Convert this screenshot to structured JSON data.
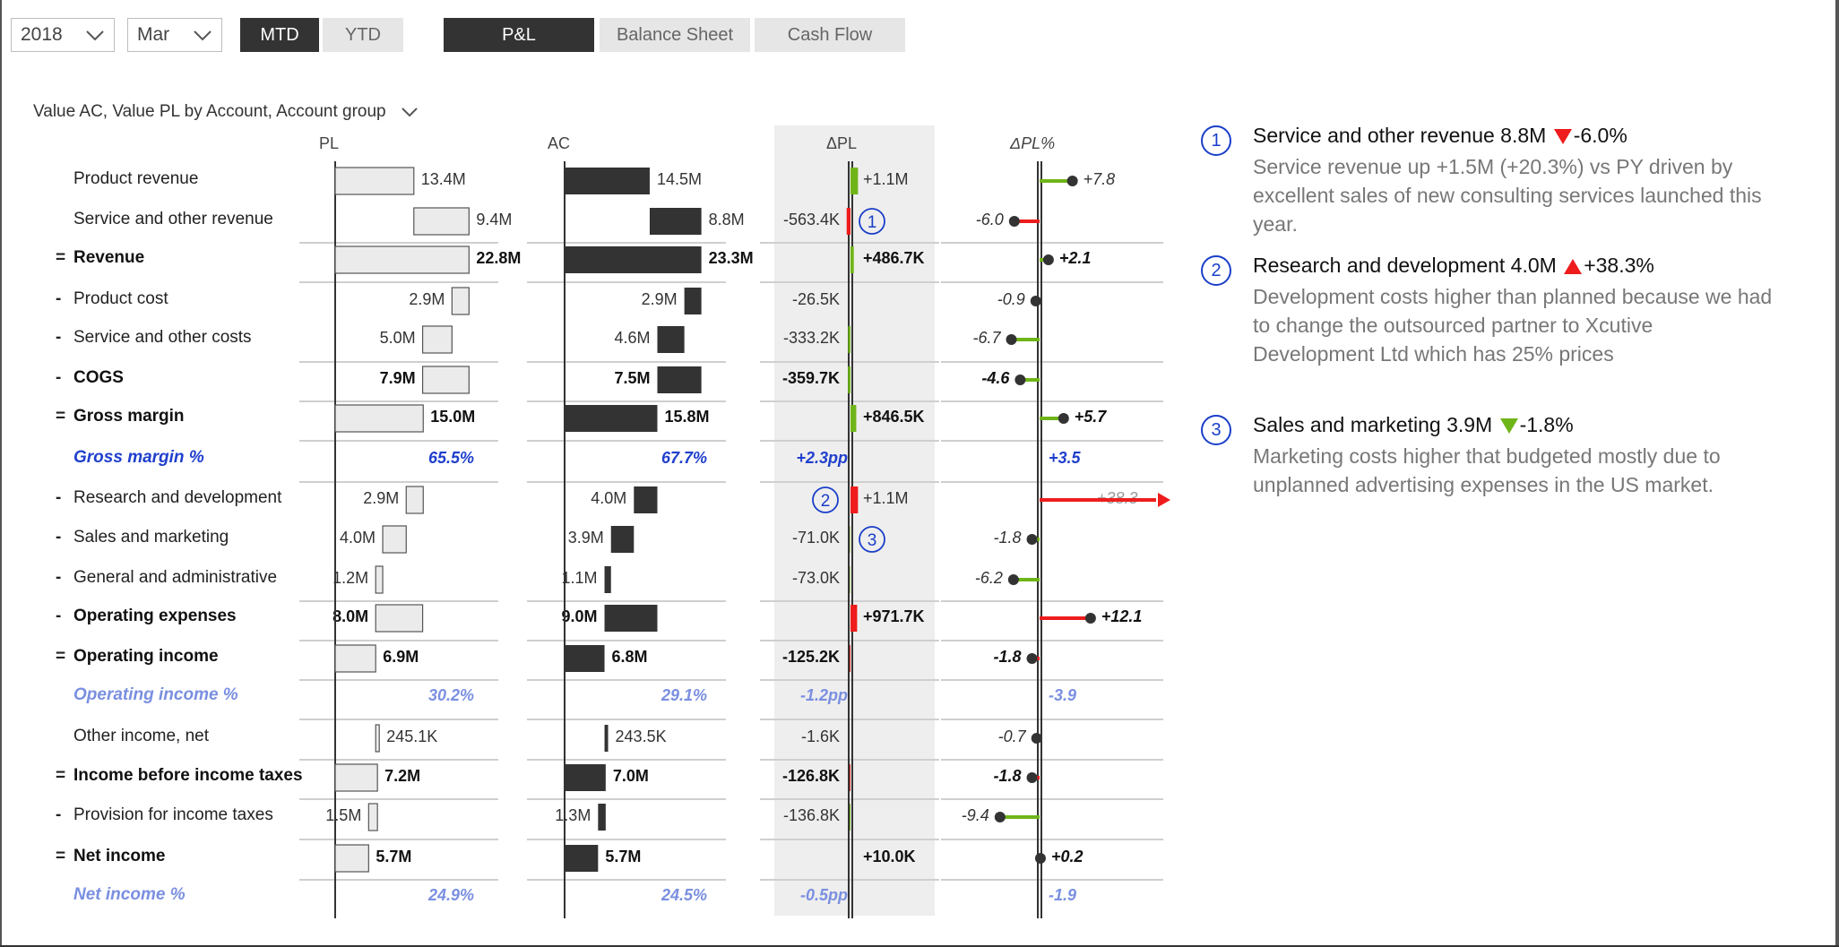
{
  "filters": {
    "year": "2018",
    "month": "Mar",
    "mtd": "MTD",
    "ytd": "YTD",
    "tabs": [
      "P&L",
      "Balance Sheet",
      "Cash Flow"
    ]
  },
  "visual_title": "Value AC, Value PL by Account, Account group",
  "columns": {
    "pl": "PL",
    "ac": "AC",
    "dpl": "ΔPL",
    "dplp": "ΔPL%"
  },
  "colors": {
    "dark": "#333333",
    "light_bar": "#ebebeb",
    "good": "#6fb519",
    "bad": "#ee1c1c",
    "accent": "#1a3ec9"
  },
  "rows": [
    {
      "op": "",
      "label": "Product revenue",
      "type": "normal",
      "pl": 13.4,
      "ac": 14.5,
      "pl_label": "13.4M",
      "ac_label": "14.5M",
      "dpl": 1.1,
      "dpl_label": "+1.1M",
      "dplp": 7.8,
      "dplp_label": "+7.8",
      "flow": "up"
    },
    {
      "op": "",
      "label": "Service and other revenue",
      "type": "normal",
      "pl": 9.4,
      "ac": 8.8,
      "pl_label": "9.4M",
      "ac_label": "8.8M",
      "dpl": -0.5634,
      "dpl_label": "-563.4K",
      "dplp": -6.0,
      "dplp_label": "-6.0",
      "flow": "up",
      "marker": "1"
    },
    {
      "op": "=",
      "label": "Revenue",
      "type": "total",
      "pl": 22.8,
      "ac": 23.3,
      "pl_label": "22.8M",
      "ac_label": "23.3M",
      "dpl": 0.4867,
      "dpl_label": "+486.7K",
      "dplp": 2.1,
      "dplp_label": "+2.1",
      "flow": "total"
    },
    {
      "op": "-",
      "label": "Product cost",
      "type": "normal",
      "pl": 2.9,
      "ac": 2.9,
      "pl_label": "2.9M",
      "ac_label": "2.9M",
      "dpl": -0.0265,
      "dpl_label": "-26.5K",
      "dplp": -0.9,
      "dplp_label": "-0.9",
      "flow": "cost"
    },
    {
      "op": "-",
      "label": "Service and other costs",
      "type": "normal",
      "pl": 5.0,
      "ac": 4.6,
      "pl_label": "5.0M",
      "ac_label": "4.6M",
      "dpl": -0.3332,
      "dpl_label": "-333.2K",
      "dplp": -6.7,
      "dplp_label": "-6.7",
      "flow": "cost"
    },
    {
      "op": "-",
      "label": "COGS",
      "type": "total",
      "pl": 7.9,
      "ac": 7.5,
      "pl_label": "7.9M",
      "ac_label": "7.5M",
      "dpl": -0.3597,
      "dpl_label": "-359.7K",
      "dplp": -4.6,
      "dplp_label": "-4.6",
      "flow": "costtotal"
    },
    {
      "op": "=",
      "label": "Gross margin",
      "type": "total",
      "pl": 15.0,
      "ac": 15.8,
      "pl_label": "15.0M",
      "ac_label": "15.8M",
      "dpl": 0.8465,
      "dpl_label": "+846.5K",
      "dplp": 5.7,
      "dplp_label": "+5.7",
      "flow": "total"
    },
    {
      "op": "",
      "label": "Gross margin %",
      "type": "pct",
      "pl_label": "65.5%",
      "ac_label": "67.7%",
      "dpl_label": "+2.3pp",
      "dplp_label": "+3.5"
    },
    {
      "op": "-",
      "label": "Research and development",
      "type": "normal",
      "pl": 2.9,
      "ac": 4.0,
      "pl_label": "2.9M",
      "ac_label": "4.0M",
      "dpl": 1.1,
      "dpl_label": "+1.1M",
      "dplp": 38.3,
      "dplp_label": "+38.3",
      "flow": "cost",
      "marker": "2"
    },
    {
      "op": "-",
      "label": "Sales and marketing",
      "type": "normal",
      "pl": 4.0,
      "ac": 3.9,
      "pl_label": "4.0M",
      "ac_label": "3.9M",
      "dpl": -0.071,
      "dpl_label": "-71.0K",
      "dplp": -1.8,
      "dplp_label": "-1.8",
      "flow": "cost",
      "marker": "3"
    },
    {
      "op": "-",
      "label": "General and administrative",
      "type": "normal",
      "pl": 1.2,
      "ac": 1.1,
      "pl_label": "1.2M",
      "ac_label": "1.1M",
      "dpl": -0.073,
      "dpl_label": "-73.0K",
      "dplp": -6.2,
      "dplp_label": "-6.2",
      "flow": "cost"
    },
    {
      "op": "-",
      "label": "Operating expenses",
      "type": "total",
      "pl": 8.0,
      "ac": 9.0,
      "pl_label": "8.0M",
      "ac_label": "9.0M",
      "dpl": 0.9717,
      "dpl_label": "+971.7K",
      "dplp": 12.1,
      "dplp_label": "+12.1",
      "flow": "costtotal"
    },
    {
      "op": "=",
      "label": "Operating income",
      "type": "total",
      "pl": 6.9,
      "ac": 6.8,
      "pl_label": "6.9M",
      "ac_label": "6.8M",
      "dpl": -0.1252,
      "dpl_label": "-125.2K",
      "dplp": -1.8,
      "dplp_label": "-1.8",
      "flow": "total"
    },
    {
      "op": "",
      "label": "Operating income %",
      "type": "pctl",
      "pl_label": "30.2%",
      "ac_label": "29.1%",
      "dpl_label": "-1.2pp",
      "dplp_label": "-3.9"
    },
    {
      "op": "",
      "label": "Other income, net",
      "type": "normal",
      "pl": 0.2451,
      "ac": 0.2435,
      "pl_label": "245.1K",
      "ac_label": "243.5K",
      "dpl": -0.0016,
      "dpl_label": "-1.6K",
      "dplp": -0.7,
      "dplp_label": "-0.7",
      "flow": "up"
    },
    {
      "op": "=",
      "label": "Income before income taxes",
      "type": "total",
      "pl": 7.2,
      "ac": 7.0,
      "pl_label": "7.2M",
      "ac_label": "7.0M",
      "dpl": -0.1268,
      "dpl_label": "-126.8K",
      "dplp": -1.8,
      "dplp_label": "-1.8",
      "flow": "total"
    },
    {
      "op": "-",
      "label": "Provision for income taxes",
      "type": "normal",
      "pl": 1.5,
      "ac": 1.3,
      "pl_label": "1.5M",
      "ac_label": "1.3M",
      "dpl": -0.1368,
      "dpl_label": "-136.8K",
      "dplp": -9.4,
      "dplp_label": "-9.4",
      "flow": "cost"
    },
    {
      "op": "=",
      "label": "Net income",
      "type": "total",
      "pl": 5.7,
      "ac": 5.7,
      "pl_label": "5.7M",
      "ac_label": "5.7M",
      "dpl": 0.01,
      "dpl_label": "+10.0K",
      "dplp": 0.2,
      "dplp_label": "+0.2",
      "flow": "total"
    },
    {
      "op": "",
      "label": "Net income %",
      "type": "pctl",
      "pl_label": "24.9%",
      "ac_label": "24.5%",
      "dpl_label": "-0.5pp",
      "dplp_label": "-1.9"
    }
  ],
  "comments": [
    {
      "num": "1",
      "title": "Service and other revenue 8.8M",
      "direction": "down",
      "direction_color": "bad",
      "delta": "-6.0%",
      "text": "Service revenue up +1.5M (+20.3%) vs PY driven by excellent sales of new consulting services launched this year."
    },
    {
      "num": "2",
      "title": "Research and development 4.0M",
      "direction": "up",
      "direction_color": "bad",
      "delta": "+38.3%",
      "text": "Development costs higher than planned because we had to change the outsourced partner to Xcutive Development Ltd which has 25% prices"
    },
    {
      "num": "3",
      "title": "Sales and marketing 3.9M",
      "direction": "down",
      "direction_color": "good",
      "delta": "-1.8%",
      "text": "Marketing costs higher that budgeted mostly due to unplanned advertising expenses in the US market."
    }
  ]
}
